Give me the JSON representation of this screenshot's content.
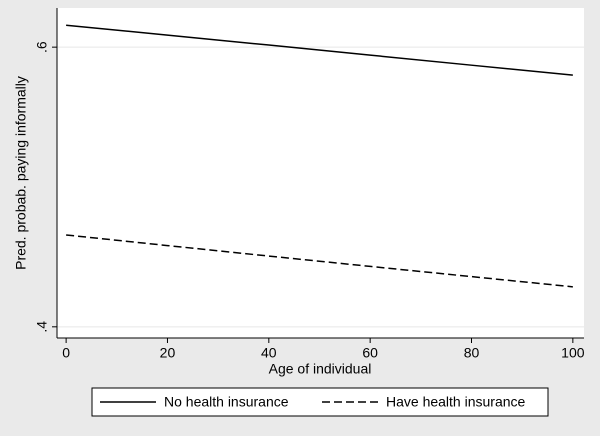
{
  "chart_data": {
    "type": "line",
    "xlabel": "Age of individual",
    "ylabel": "Pred. probab. paying informally",
    "x": [
      0,
      20,
      40,
      60,
      80,
      100
    ],
    "series": [
      {
        "name": "No health insurance",
        "color": "#000000",
        "dash": "solid",
        "values": [
          0.6157,
          0.6086,
          0.6015,
          0.5943,
          0.5871,
          0.58
        ]
      },
      {
        "name": "Have health insurance",
        "color": "#000000",
        "dash": "dashed",
        "values": [
          0.4657,
          0.4581,
          0.4506,
          0.4432,
          0.4359,
          0.4286
        ]
      }
    ],
    "xlim": [
      -1.8,
      102.2
    ],
    "xticks": [
      0,
      20,
      40,
      60,
      80,
      100
    ],
    "ylim": [
      0.392,
      0.628
    ],
    "yticks": [
      {
        "value": 0.4,
        "label": ".4"
      },
      {
        "value": 0.6,
        "label": ".6"
      }
    ],
    "grid": true,
    "legend": "bottom"
  }
}
